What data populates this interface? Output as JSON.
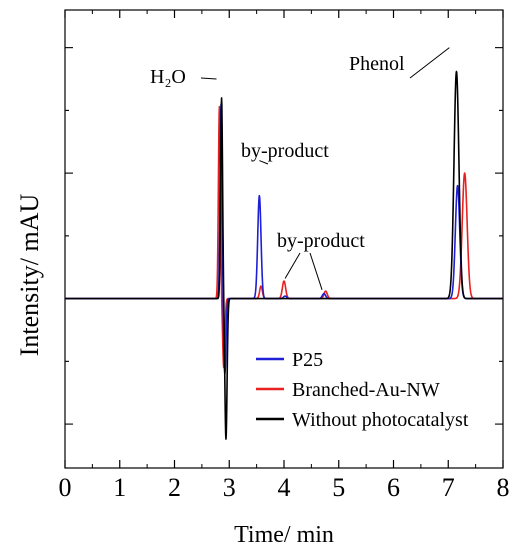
{
  "chart_data": {
    "type": "line",
    "title": "",
    "xlabel": "Time/ min",
    "ylabel": "Intensity/ mAU",
    "xlim": [
      0,
      8
    ],
    "ylim": [
      -1.35,
      2.3
    ],
    "x_ticks": [
      "0",
      "1",
      "2",
      "3",
      "4",
      "5",
      "6",
      "7",
      "8"
    ],
    "y_tick_labels_shown": false,
    "grid": false,
    "legend_position": "lower-right",
    "annotations": [
      {
        "id": "h2o",
        "text": "H₂O",
        "points_to": {
          "x": 2.84,
          "y": 1.75
        }
      },
      {
        "id": "byproduct1",
        "text": "by-product",
        "points_to": {
          "x": 3.55,
          "y": 1.1
        }
      },
      {
        "id": "byproduct2",
        "text": "by-product",
        "points_to_list": [
          {
            "x": 4.02,
            "y": 0.16
          },
          {
            "x": 4.75,
            "y": 0.07
          }
        ]
      },
      {
        "id": "phenol",
        "text": "Phenol",
        "points_to": {
          "x": 7.13,
          "y": 2.0
        }
      }
    ],
    "series": [
      {
        "name": "P25",
        "color": "#1f1fd6",
        "baseline": 0,
        "peaks": [
          {
            "x": 2.85,
            "height": 1.55,
            "width": 0.018
          },
          {
            "x": 2.92,
            "height": -0.6,
            "width": 0.02
          },
          {
            "x": 3.55,
            "height": 0.82,
            "width": 0.03
          },
          {
            "x": 4.02,
            "height": 0.02,
            "width": 0.03
          },
          {
            "x": 4.73,
            "height": 0.04,
            "width": 0.03
          },
          {
            "x": 7.17,
            "height": 0.9,
            "width": 0.04
          }
        ]
      },
      {
        "name": "Branched-Au-NW",
        "color": "#e82020",
        "baseline": 0,
        "peaks": [
          {
            "x": 2.82,
            "height": 1.53,
            "width": 0.018
          },
          {
            "x": 2.9,
            "height": -0.55,
            "width": 0.02
          },
          {
            "x": 3.58,
            "height": 0.1,
            "width": 0.025
          },
          {
            "x": 4.0,
            "height": 0.14,
            "width": 0.03
          },
          {
            "x": 4.76,
            "height": 0.06,
            "width": 0.03
          },
          {
            "x": 7.3,
            "height": 1.0,
            "width": 0.045
          }
        ]
      },
      {
        "name": "Without photocatalyst",
        "color": "#000000",
        "baseline": 0,
        "peaks": [
          {
            "x": 2.86,
            "height": 1.6,
            "width": 0.018
          },
          {
            "x": 2.94,
            "height": -1.12,
            "width": 0.02
          },
          {
            "x": 7.15,
            "height": 1.81,
            "width": 0.045
          }
        ]
      }
    ]
  }
}
